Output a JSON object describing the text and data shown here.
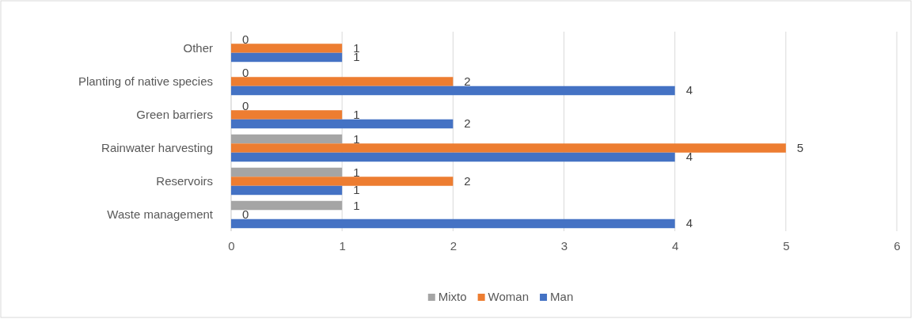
{
  "chart_data": {
    "type": "bar",
    "orientation": "horizontal",
    "categories": [
      "Other",
      "Planting of native species",
      "Green barriers",
      "Rainwater harvesting",
      "Reservoirs",
      "Waste management"
    ],
    "series": [
      {
        "name": "Mixto",
        "color": "#a5a5a5",
        "values": [
          0,
          0,
          0,
          1,
          1,
          1
        ]
      },
      {
        "name": "Woman",
        "color": "#ed7d31",
        "values": [
          1,
          2,
          1,
          5,
          2,
          0
        ]
      },
      {
        "name": "Man",
        "color": "#4472c4",
        "values": [
          1,
          4,
          2,
          4,
          1,
          4
        ]
      }
    ],
    "xlim": [
      0,
      6
    ],
    "xticks": [
      0,
      1,
      2,
      3,
      4,
      5,
      6
    ],
    "grid": "x",
    "legend": "bottom",
    "data_labels": true
  }
}
